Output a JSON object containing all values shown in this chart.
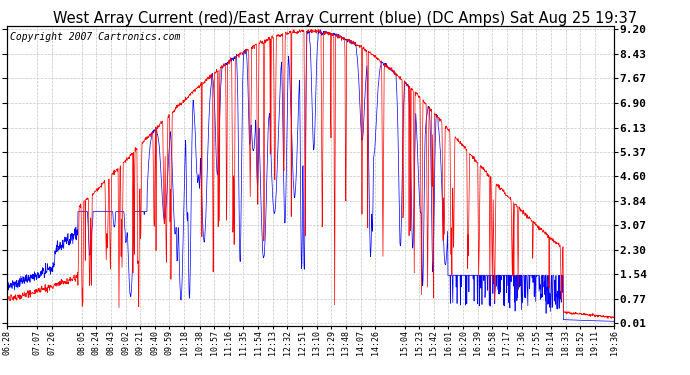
{
  "title": "West Array Current (red)/East Array Current (blue) (DC Amps) Sat Aug 25 19:37",
  "copyright": "Copyright 2007 Cartronics.com",
  "ylabel_right": [
    "0.01",
    "0.77",
    "1.54",
    "2.30",
    "3.07",
    "3.84",
    "4.60",
    "5.37",
    "6.13",
    "6.90",
    "7.67",
    "8.43",
    "9.20"
  ],
  "yticks": [
    0.01,
    0.77,
    1.54,
    2.3,
    3.07,
    3.84,
    4.6,
    5.37,
    6.13,
    6.9,
    7.67,
    8.43,
    9.2
  ],
  "ylim": [
    0.01,
    9.2
  ],
  "xtick_labels": [
    "06:28",
    "07:07",
    "07:26",
    "08:05",
    "08:24",
    "08:43",
    "09:02",
    "09:21",
    "09:40",
    "09:59",
    "10:18",
    "10:38",
    "10:57",
    "11:16",
    "11:35",
    "11:54",
    "12:13",
    "12:32",
    "12:51",
    "13:10",
    "13:29",
    "13:48",
    "14:07",
    "14:26",
    "15:04",
    "15:23",
    "15:42",
    "16:01",
    "16:20",
    "16:39",
    "16:58",
    "17:17",
    "17:36",
    "17:55",
    "18:14",
    "18:33",
    "18:52",
    "19:11",
    "19:36"
  ],
  "background_color": "#ffffff",
  "plot_bg_color": "#ffffff",
  "grid_color": "#c8c8c8",
  "red_color": "#ff0000",
  "blue_color": "#0000ff",
  "title_fontsize": 10.5,
  "copyright_fontsize": 7
}
